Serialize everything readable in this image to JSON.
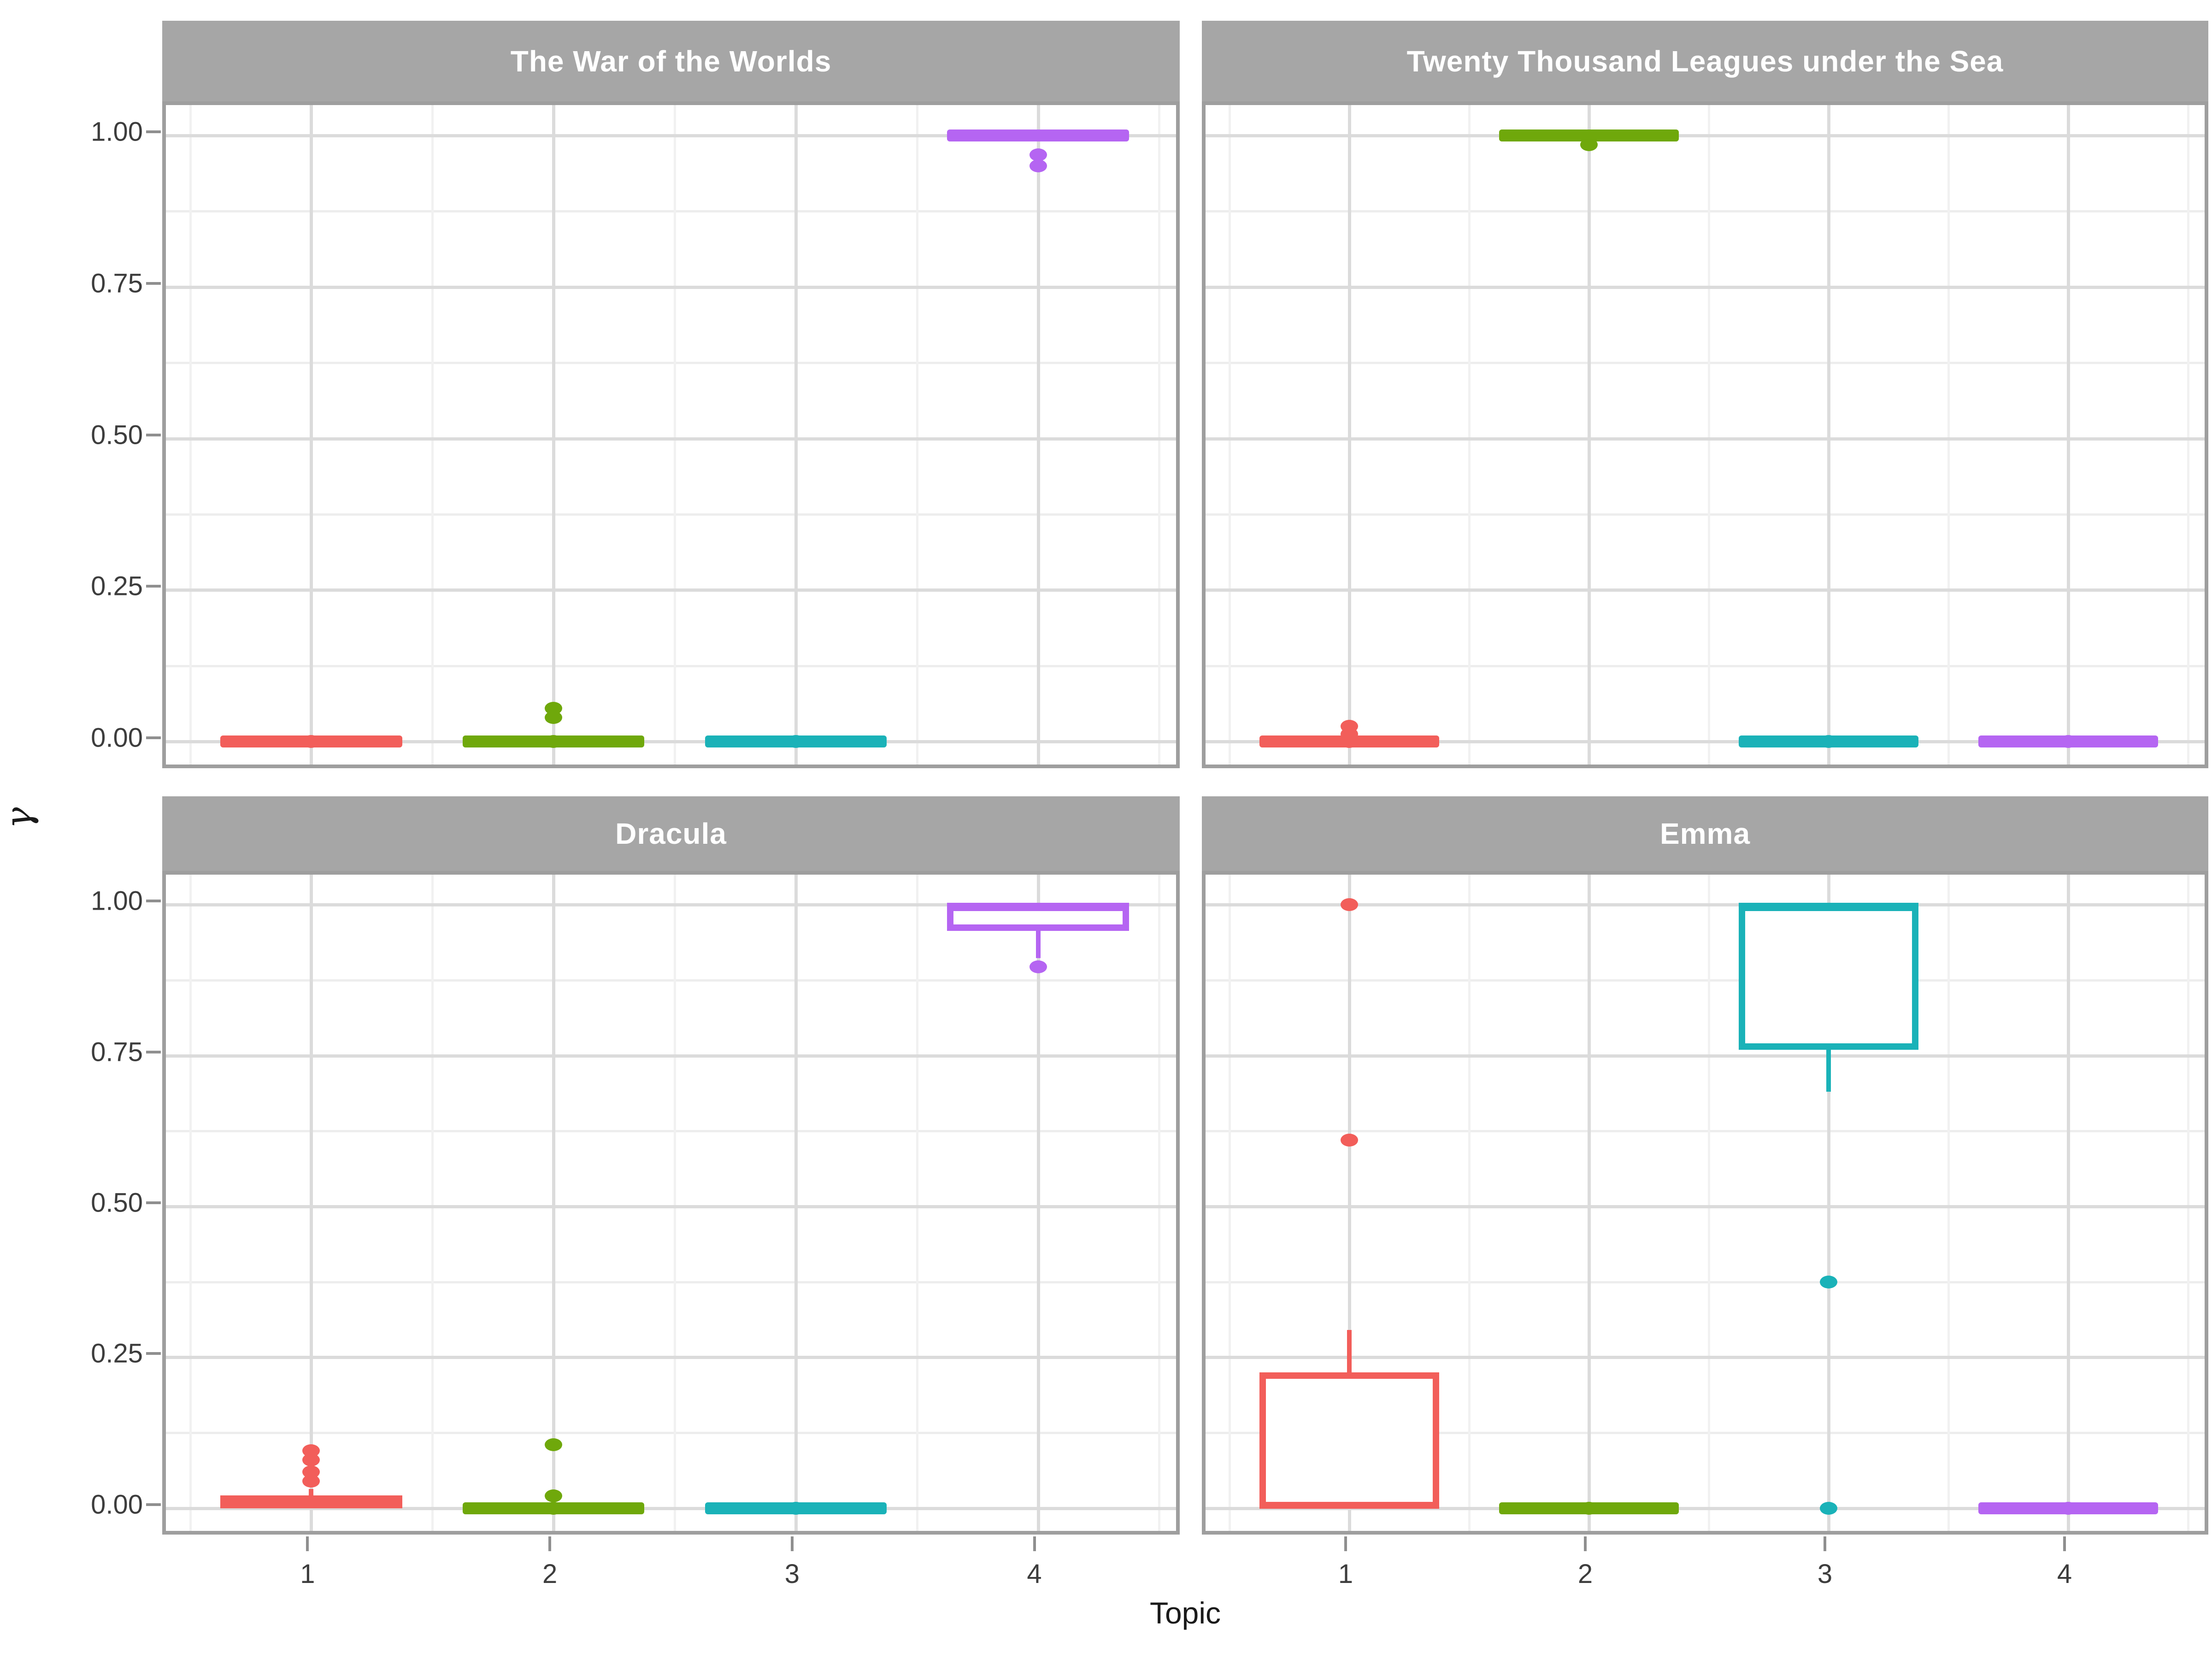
{
  "figure": {
    "background": "#ffffff",
    "strip_bg": "#a6a6a6",
    "strip_text_color": "#ffffff",
    "panel_border_color": "#9e9e9e",
    "grid_major_color": "#dbdbdb",
    "grid_minor_color": "#ededed",
    "grid_minor_v_color": "#f1f1f1",
    "tick_mark_color": "#8f8f8f",
    "tick_label_color": "#3d3d3d"
  },
  "axes": {
    "y_title": "γ",
    "x_title": "Topic",
    "y_ticks": [
      {
        "label": "1.00",
        "value": 1.0
      },
      {
        "label": "0.75",
        "value": 0.75
      },
      {
        "label": "0.50",
        "value": 0.5
      },
      {
        "label": "0.25",
        "value": 0.25
      },
      {
        "label": "0.00",
        "value": 0.0
      }
    ],
    "x_ticks": [
      {
        "label": "1",
        "value": 1
      },
      {
        "label": "2",
        "value": 2
      },
      {
        "label": "3",
        "value": 3
      },
      {
        "label": "4",
        "value": 4
      }
    ]
  },
  "topic_colors": {
    "1": "#f25e5a",
    "2": "#6fa80b",
    "3": "#1ab2b8",
    "4": "#b565f2"
  },
  "chart_data": {
    "type": "boxplot",
    "facet_variable": "document",
    "x_variable": "Topic",
    "y_variable": "gamma",
    "xlabel": "Topic",
    "ylabel": "γ",
    "ylim": [
      0,
      1
    ],
    "x_categories": [
      1,
      2,
      3,
      4
    ],
    "grid": true,
    "facets": [
      {
        "title": "The War of the Worlds",
        "boxes": [
          {
            "topic": 1,
            "q1": 0,
            "median": 0,
            "q3": 0,
            "whisker_low": 0,
            "whisker_high": 0,
            "outliers": [
              0
            ]
          },
          {
            "topic": 2,
            "q1": 0,
            "median": 0,
            "q3": 0,
            "whisker_low": 0,
            "whisker_high": 0,
            "outliers": [
              0.055,
              0.04,
              0
            ]
          },
          {
            "topic": 3,
            "q1": 0,
            "median": 0,
            "q3": 0,
            "whisker_low": 0,
            "whisker_high": 0,
            "outliers": [
              0
            ]
          },
          {
            "topic": 4,
            "q1": 1,
            "median": 1,
            "q3": 1,
            "whisker_low": 1,
            "whisker_high": 1,
            "outliers": [
              0.968,
              0.95
            ]
          }
        ]
      },
      {
        "title": "Twenty Thousand Leagues under the Sea",
        "boxes": [
          {
            "topic": 1,
            "q1": 0,
            "median": 0,
            "q3": 0,
            "whisker_low": 0,
            "whisker_high": 0,
            "outliers": [
              0.025,
              0.012,
              0
            ]
          },
          {
            "topic": 2,
            "q1": 1,
            "median": 1,
            "q3": 1,
            "whisker_low": 1,
            "whisker_high": 1,
            "outliers": [
              0.985
            ]
          },
          {
            "topic": 3,
            "q1": 0,
            "median": 0,
            "q3": 0,
            "whisker_low": 0,
            "whisker_high": 0,
            "outliers": [
              0
            ]
          },
          {
            "topic": 4,
            "q1": 0,
            "median": 0,
            "q3": 0,
            "whisker_low": 0,
            "whisker_high": 0,
            "outliers": [
              0
            ]
          }
        ]
      },
      {
        "title": "Dracula",
        "boxes": [
          {
            "topic": 1,
            "q1": 0,
            "median": 0.006,
            "q3": 0.021,
            "whisker_low": 0,
            "whisker_high": 0.032,
            "outliers": [
              0.095,
              0.08,
              0.06,
              0.045
            ]
          },
          {
            "topic": 2,
            "q1": 0,
            "median": 0,
            "q3": 0,
            "whisker_low": 0,
            "whisker_high": 0,
            "outliers": [
              0.105,
              0.02,
              0
            ]
          },
          {
            "topic": 3,
            "q1": 0,
            "median": 0,
            "q3": 0,
            "whisker_low": 0,
            "whisker_high": 0,
            "outliers": [
              0
            ]
          },
          {
            "topic": 4,
            "q1": 0.957,
            "median": 0.998,
            "q3": 1.0,
            "whisker_low": 0.912,
            "whisker_high": 1.0,
            "outliers": [
              0.897
            ]
          }
        ]
      },
      {
        "title": "Emma",
        "boxes": [
          {
            "topic": 1,
            "q1": 0,
            "median": 0.004,
            "q3": 0.225,
            "whisker_low": 0,
            "whisker_high": 0.295,
            "outliers": [
              0.61,
              1.0
            ]
          },
          {
            "topic": 2,
            "q1": 0,
            "median": 0,
            "q3": 0,
            "whisker_low": 0,
            "whisker_high": 0,
            "outliers": [
              0
            ]
          },
          {
            "topic": 3,
            "q1": 0.76,
            "median": 0.998,
            "q3": 1.0,
            "whisker_low": 0.69,
            "whisker_high": 1.0,
            "outliers": [
              0.375,
              0
            ]
          },
          {
            "topic": 4,
            "q1": 0,
            "median": 0,
            "q3": 0,
            "whisker_low": 0,
            "whisker_high": 0,
            "outliers": [
              0
            ]
          }
        ]
      }
    ]
  }
}
